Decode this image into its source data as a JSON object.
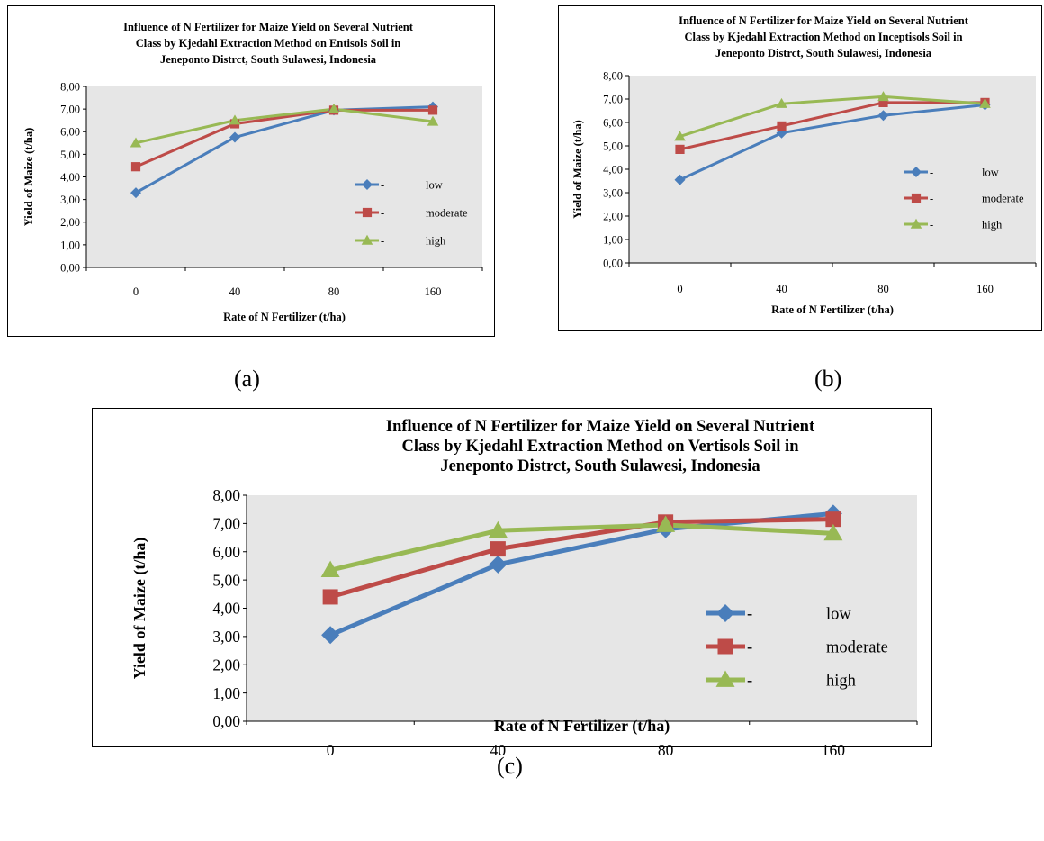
{
  "captions": [
    "(a)",
    "(b)",
    "(c)"
  ],
  "chart_data": [
    {
      "type": "line",
      "title": [
        "Influence of  N Fertilizer for Maize Yield on Several Nutrient",
        "Class by Kjedahl Extraction Method  on Entisols Soil in",
        "Jeneponto Distrct, South Sulawesi, Indonesia"
      ],
      "xlabel": "Rate of N Fertilizer (t/ha)",
      "ylabel": "Yield of Maize (t/ha)",
      "categories": [
        "0",
        "40",
        "80",
        "160"
      ],
      "yticks": [
        "0,00",
        "1,00",
        "2,00",
        "3,00",
        "4,00",
        "5,00",
        "6,00",
        "7,00",
        "8,00"
      ],
      "ylim": [
        0,
        8
      ],
      "grid": false,
      "legend_position": "right",
      "series": [
        {
          "name": "low",
          "legend_prefix": "-",
          "marker": "diamond",
          "color": "#4A7EBB",
          "values": [
            3.3,
            5.75,
            6.95,
            7.1
          ]
        },
        {
          "name": "moderate",
          "legend_prefix": "-",
          "marker": "square",
          "color": "#BE4B48",
          "values": [
            4.45,
            6.35,
            6.95,
            6.95
          ]
        },
        {
          "name": "high",
          "legend_prefix": "-",
          "marker": "triangle",
          "color": "#98B954",
          "values": [
            5.5,
            6.5,
            7.0,
            6.45
          ]
        }
      ]
    },
    {
      "type": "line",
      "title": [
        "Influence of  N Fertilizer for Maize Yield on Several Nutrient",
        "Class by Kjedahl Extraction Method  on Inceptisols Soil in",
        "Jeneponto Distrct, South Sulawesi, Indonesia"
      ],
      "xlabel": "Rate of N Fertilizer (t/ha)",
      "ylabel": "Yield of Maize (t/ha)",
      "categories": [
        "0",
        "40",
        "80",
        "160"
      ],
      "yticks": [
        "0,00",
        "1,00",
        "2,00",
        "3,00",
        "4,00",
        "5,00",
        "6,00",
        "7,00",
        "8,00"
      ],
      "ylim": [
        0,
        8
      ],
      "grid": false,
      "legend_position": "right",
      "series": [
        {
          "name": "low",
          "legend_prefix": "-",
          "marker": "diamond",
          "color": "#4A7EBB",
          "values": [
            3.55,
            5.55,
            6.3,
            6.75
          ]
        },
        {
          "name": "moderate",
          "legend_prefix": "-",
          "marker": "square",
          "color": "#BE4B48",
          "values": [
            4.85,
            5.85,
            6.85,
            6.85
          ]
        },
        {
          "name": "high",
          "legend_prefix": "-",
          "marker": "triangle",
          "color": "#98B954",
          "values": [
            5.4,
            6.8,
            7.1,
            6.8
          ]
        }
      ]
    },
    {
      "type": "line",
      "title": [
        "Influence of  N Fertilizer for Maize Yield on Several Nutrient",
        "Class by Kjedahl Extraction Method  on Vertisols Soil in",
        "Jeneponto Distrct, South Sulawesi, Indonesia"
      ],
      "xlabel": "Rate of N Fertilizer (t/ha)",
      "ylabel": "Yield of Maize (t/ha)",
      "categories": [
        "0",
        "40",
        "80",
        "160"
      ],
      "yticks": [
        "0,00",
        "1,00",
        "2,00",
        "3,00",
        "4,00",
        "5,00",
        "6,00",
        "7,00",
        "8,00"
      ],
      "ylim": [
        0,
        8
      ],
      "grid": false,
      "legend_position": "right",
      "series": [
        {
          "name": "low",
          "legend_prefix": "-",
          "marker": "diamond",
          "color": "#4A7EBB",
          "values": [
            3.05,
            5.55,
            6.8,
            7.35
          ]
        },
        {
          "name": "moderate",
          "legend_prefix": "-",
          "marker": "square",
          "color": "#BE4B48",
          "values": [
            4.4,
            6.1,
            7.05,
            7.15
          ]
        },
        {
          "name": "high",
          "legend_prefix": "-",
          "marker": "triangle",
          "color": "#98B954",
          "values": [
            5.35,
            6.75,
            6.95,
            6.65
          ]
        }
      ]
    }
  ]
}
